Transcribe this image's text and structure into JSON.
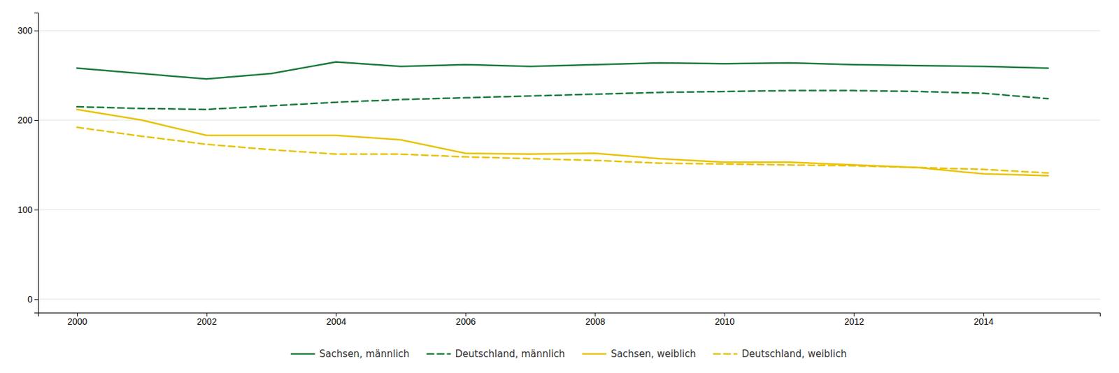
{
  "chart_data": {
    "type": "line",
    "x": [
      2000,
      2001,
      2002,
      2003,
      2004,
      2005,
      2006,
      2007,
      2008,
      2009,
      2010,
      2011,
      2012,
      2013,
      2014,
      2015
    ],
    "series": [
      {
        "name": "Sachsen, männlich",
        "color": "#1a7a3c",
        "line_style": "solid",
        "values": [
          258,
          252,
          246,
          252,
          265,
          260,
          262,
          260,
          262,
          264,
          263,
          264,
          262,
          261,
          260,
          258
        ]
      },
      {
        "name": "Deutschland, männlich",
        "color": "#1a7a3c",
        "line_style": "dashed",
        "values": [
          215,
          213,
          212,
          216,
          220,
          223,
          225,
          227,
          229,
          231,
          232,
          233,
          233,
          232,
          230,
          224
        ]
      },
      {
        "name": "Sachsen, weiblich",
        "color": "#e8c200",
        "line_style": "solid",
        "values": [
          212,
          200,
          183,
          183,
          183,
          178,
          163,
          162,
          163,
          157,
          153,
          153,
          150,
          147,
          140,
          138
        ]
      },
      {
        "name": "Deutschland, weiblich",
        "color": "#e8c200",
        "line_style": "dashed",
        "values": [
          192,
          182,
          173,
          167,
          162,
          162,
          159,
          157,
          155,
          152,
          151,
          150,
          149,
          147,
          145,
          141
        ]
      }
    ],
    "xlim": [
      1999.4,
      2015.8
    ],
    "ylim": [
      -15,
      320
    ],
    "xticks": [
      2000,
      2002,
      2004,
      2006,
      2008,
      2010,
      2012,
      2014
    ],
    "yticks": [
      0,
      100,
      200,
      300
    ],
    "grid": true,
    "legend": "bottom"
  }
}
